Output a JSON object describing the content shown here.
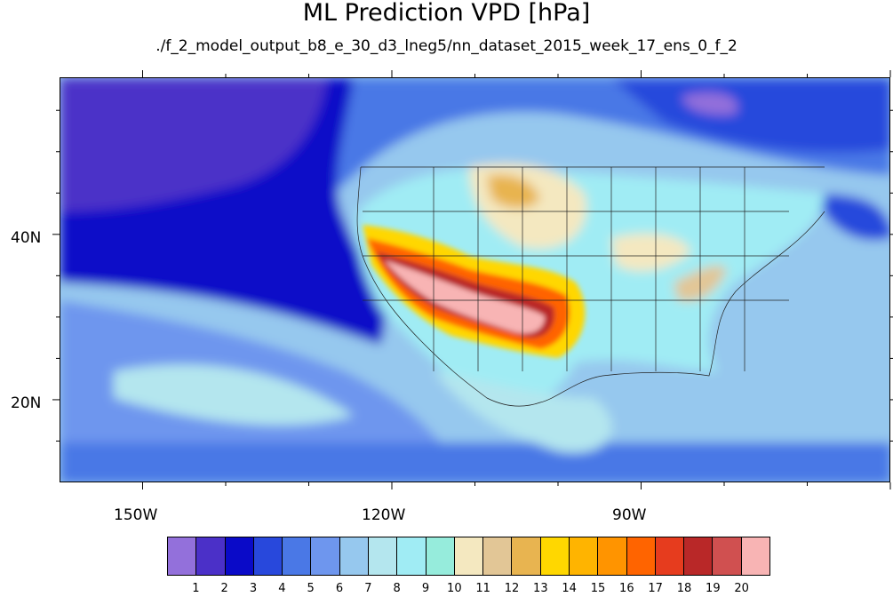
{
  "title": "ML Prediction VPD [hPa]",
  "subtitle": "./f_2_model_output_b8_e_30_d3_lneg5/nn_dataset_2015_week_17_ens_0_f_2",
  "chart_data": {
    "type": "heatmap",
    "title": "ML Prediction VPD [hPa]",
    "subtitle": "./f_2_model_output_b8_e_30_d3_lneg5/nn_dataset_2015_week_17_ens_0_f_2",
    "lon_ticks": [
      "150W",
      "120W",
      "90W"
    ],
    "lat_ticks": [
      "40N",
      "20N"
    ],
    "lon_range": [
      -160,
      -60
    ],
    "lat_range": [
      10,
      59
    ],
    "colorbar": {
      "labels": [
        "1",
        "2",
        "3",
        "4",
        "5",
        "6",
        "7",
        "8",
        "9",
        "10",
        "11",
        "12",
        "13",
        "14",
        "15",
        "16",
        "17",
        "18",
        "19",
        "20"
      ],
      "colors": [
        "#9370db",
        "#4b30c8",
        "#0a0ac8",
        "#2848dc",
        "#4a78e6",
        "#6e96ee",
        "#96c8ee",
        "#b4e6ee",
        "#a0ecf4",
        "#96ecdc",
        "#f4e8c0",
        "#e2c696",
        "#e8b450",
        "#ffd700",
        "#ffb400",
        "#ff9400",
        "#ff6400",
        "#e63c1e",
        "#b92828",
        "#d05050",
        "#f8b4b4"
      ]
    }
  }
}
